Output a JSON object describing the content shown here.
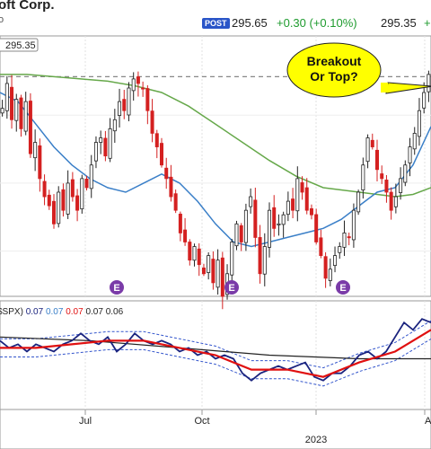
{
  "header": {
    "title": "oft Corp.",
    "subtitle": "o",
    "badge": "POST",
    "post_price": "295.65",
    "post_change": "+0.30 (+0.10%)",
    "last_price": "295.35",
    "last_change": "+"
  },
  "colors": {
    "up": "#222222",
    "down": "#d42020",
    "ma_blue": "#3a7fc8",
    "ma_green": "#66a84a",
    "rs_line": "#1a237e",
    "rs_ma": "#e01010",
    "rs_long": "#222222",
    "band": "#3355cc",
    "callout": "#ffff00",
    "earnings": "#7a3ba8"
  },
  "chart_data": [
    {
      "type": "candlestick",
      "price_tag": "295.35",
      "ylim": [
        200,
        315
      ],
      "reference_line": 297,
      "x_ticks": [
        {
          "label": "Jul",
          "x": 95
        },
        {
          "label": "Oct",
          "x": 225
        },
        {
          "label": "2023",
          "x": 352
        },
        {
          "label": "Ap",
          "x": 473
        }
      ],
      "earnings_label": "E",
      "earnings_x": [
        130,
        258,
        382
      ],
      "annotation": "Breakout\nOr Top?",
      "ma_blue": [
        [
          0,
          290
        ],
        [
          20,
          286
        ],
        [
          40,
          276
        ],
        [
          60,
          266
        ],
        [
          80,
          258
        ],
        [
          100,
          252
        ],
        [
          120,
          248
        ],
        [
          140,
          246
        ],
        [
          160,
          250
        ],
        [
          180,
          254
        ],
        [
          200,
          250
        ],
        [
          220,
          242
        ],
        [
          240,
          232
        ],
        [
          260,
          224
        ],
        [
          280,
          222
        ],
        [
          300,
          224
        ],
        [
          320,
          226
        ],
        [
          340,
          228
        ],
        [
          360,
          230
        ],
        [
          380,
          234
        ],
        [
          400,
          240
        ],
        [
          420,
          246
        ],
        [
          440,
          248
        ],
        [
          460,
          258
        ],
        [
          480,
          275
        ]
      ],
      "ma_green": [
        [
          0,
          298
        ],
        [
          30,
          298
        ],
        [
          60,
          297
        ],
        [
          90,
          296
        ],
        [
          120,
          295
        ],
        [
          150,
          293
        ],
        [
          180,
          290
        ],
        [
          210,
          284
        ],
        [
          240,
          276
        ],
        [
          270,
          268
        ],
        [
          300,
          260
        ],
        [
          330,
          253
        ],
        [
          360,
          248
        ],
        [
          380,
          247
        ],
        [
          400,
          246
        ],
        [
          420,
          245
        ],
        [
          440,
          244
        ],
        [
          460,
          245
        ],
        [
          480,
          248
        ]
      ],
      "candles_close": [
        283,
        294,
        278,
        287,
        274,
        286,
        263,
        268,
        252,
        244,
        240,
        232,
        246,
        238,
        250,
        244,
        238,
        252,
        248,
        258,
        268,
        270,
        262,
        274,
        278,
        286,
        282,
        292,
        296,
        294,
        292,
        282,
        272,
        266,
        258,
        252,
        244,
        238,
        228,
        224,
        216,
        222,
        214,
        210,
        218,
        206,
        216,
        200,
        210,
        224,
        232,
        224,
        238,
        244,
        226,
        210,
        222,
        238,
        230,
        232,
        236,
        242,
        238,
        252,
        246,
        238,
        236,
        224,
        218,
        208,
        212,
        218,
        222,
        228,
        226,
        238,
        246,
        258,
        270,
        266,
        256,
        252,
        246,
        238,
        244,
        252,
        258,
        266,
        272,
        282,
        290,
        298
      ]
    },
    {
      "type": "line",
      "legend_prefix": "$SPX)",
      "legend_values": [
        "0.07",
        "0.07",
        "0.07",
        "0.07",
        "0.06"
      ],
      "legend_colors": [
        "#1a237e",
        "#3a7fc8",
        "#e01010",
        "#222222",
        "#222222"
      ],
      "ylim": [
        0.05,
        0.08
      ],
      "rs_line": [
        [
          0,
          0.069
        ],
        [
          10,
          0.067
        ],
        [
          20,
          0.068
        ],
        [
          30,
          0.066
        ],
        [
          40,
          0.068
        ],
        [
          50,
          0.067
        ],
        [
          60,
          0.066
        ],
        [
          70,
          0.068
        ],
        [
          80,
          0.069
        ],
        [
          90,
          0.071
        ],
        [
          100,
          0.069
        ],
        [
          110,
          0.068
        ],
        [
          120,
          0.07
        ],
        [
          130,
          0.066
        ],
        [
          140,
          0.068
        ],
        [
          150,
          0.071
        ],
        [
          160,
          0.069
        ],
        [
          170,
          0.068
        ],
        [
          180,
          0.069
        ],
        [
          190,
          0.068
        ],
        [
          200,
          0.066
        ],
        [
          210,
          0.067
        ],
        [
          220,
          0.065
        ],
        [
          230,
          0.066
        ],
        [
          240,
          0.064
        ],
        [
          250,
          0.065
        ],
        [
          260,
          0.064
        ],
        [
          270,
          0.06
        ],
        [
          280,
          0.058
        ],
        [
          290,
          0.06
        ],
        [
          300,
          0.061
        ],
        [
          310,
          0.062
        ],
        [
          320,
          0.061
        ],
        [
          330,
          0.062
        ],
        [
          340,
          0.063
        ],
        [
          350,
          0.059
        ],
        [
          360,
          0.058
        ],
        [
          370,
          0.06
        ],
        [
          380,
          0.06
        ],
        [
          390,
          0.062
        ],
        [
          400,
          0.065
        ],
        [
          410,
          0.066
        ],
        [
          420,
          0.064
        ],
        [
          430,
          0.066
        ],
        [
          440,
          0.07
        ],
        [
          450,
          0.074
        ],
        [
          460,
          0.072
        ],
        [
          470,
          0.075
        ],
        [
          480,
          0.074
        ]
      ],
      "rs_ma": [
        [
          0,
          0.067
        ],
        [
          40,
          0.067
        ],
        [
          80,
          0.068
        ],
        [
          120,
          0.069
        ],
        [
          160,
          0.069
        ],
        [
          200,
          0.067
        ],
        [
          240,
          0.065
        ],
        [
          280,
          0.061
        ],
        [
          320,
          0.061
        ],
        [
          360,
          0.059
        ],
        [
          400,
          0.063
        ],
        [
          440,
          0.066
        ],
        [
          480,
          0.072
        ]
      ],
      "rs_long": [
        [
          0,
          0.07
        ],
        [
          100,
          0.069
        ],
        [
          200,
          0.067
        ],
        [
          300,
          0.065
        ],
        [
          400,
          0.064
        ],
        [
          480,
          0.064
        ]
      ]
    }
  ]
}
